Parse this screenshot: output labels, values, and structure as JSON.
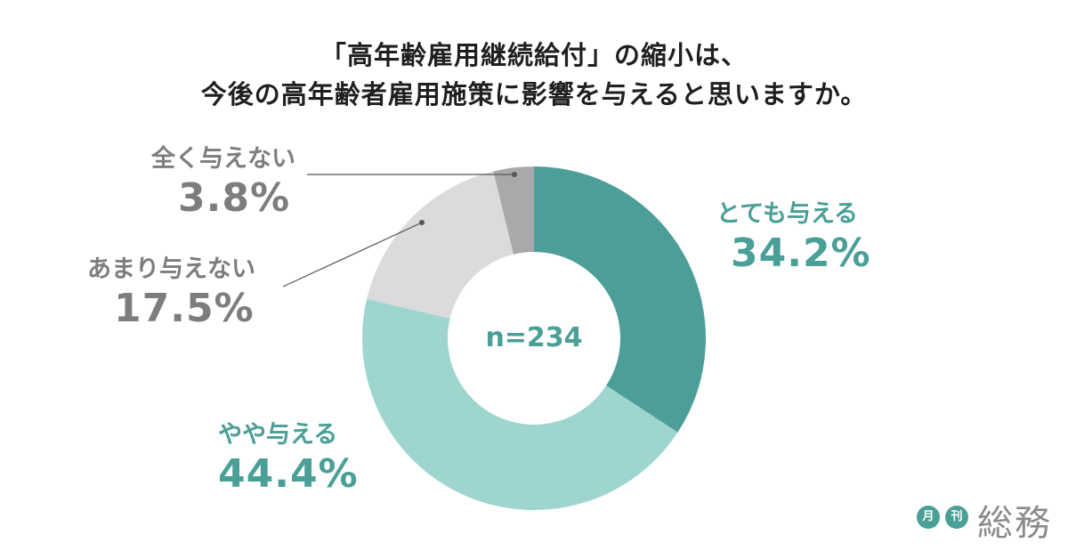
{
  "title": {
    "line1": "「高年齢雇用継続給付」の縮小は、",
    "line2": "今後の高年齢者雇用施策に影響を与えると思いますか。"
  },
  "center_label": "n=234",
  "colors": {
    "very": "#4c9f98",
    "somewhat": "#9ed6cf",
    "not_much": "#dcdadd",
    "not_at_all": "#a9a8aa",
    "teal_text": "#4a9f97",
    "gray_text": "#7d7d7d"
  },
  "chart_data": {
    "type": "pie",
    "variant": "donut",
    "start": "top, clockwise",
    "slices": [
      {
        "label": "とても与える",
        "value": 34.2,
        "pct_text": "34.2%",
        "color": "#4c9f98"
      },
      {
        "label": "やや与える",
        "value": 44.4,
        "pct_text": "44.4%",
        "color": "#9ed6cf"
      },
      {
        "label": "あまり与えない",
        "value": 17.5,
        "pct_text": "17.5%",
        "color": "#dcdadd"
      },
      {
        "label": "全く与えない",
        "value": 3.8,
        "pct_text": "3.8%",
        "color": "#a9a8aa"
      }
    ]
  },
  "logo": {
    "badge1": "月",
    "badge2": "刊",
    "brand": "総務"
  }
}
